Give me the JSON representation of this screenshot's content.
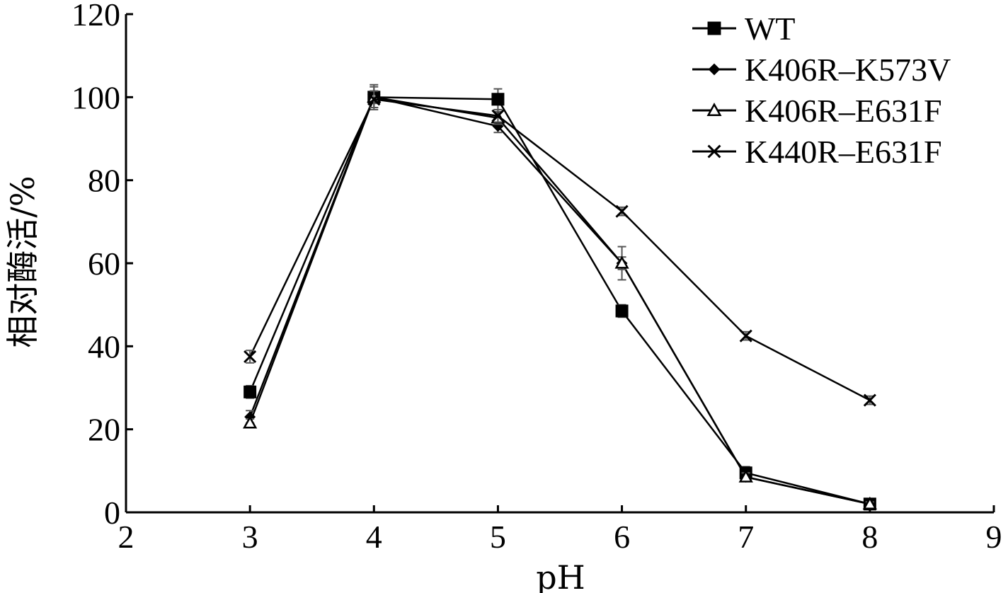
{
  "chart_data": {
    "type": "line",
    "xlabel": "pH",
    "ylabel": "相对酶活/%",
    "xlim": [
      2,
      9
    ],
    "ylim": [
      0,
      120
    ],
    "x_ticks": [
      "2",
      "3",
      "4",
      "5",
      "6",
      "7",
      "8",
      "9"
    ],
    "y_ticks": [
      "0",
      "20",
      "40",
      "60",
      "80",
      "100",
      "120"
    ],
    "grid": false,
    "legend_position": "top-right",
    "x": [
      3,
      4,
      5,
      6,
      7,
      8
    ],
    "series": [
      {
        "name": "WT",
        "marker": "square",
        "values": [
          29,
          100,
          99.5,
          48.5,
          9.5,
          2
        ],
        "errors": [
          1.5,
          2.5,
          2.5,
          1.5,
          1.5,
          1
        ]
      },
      {
        "name": "K406R–K573V",
        "marker": "diamond",
        "values": [
          23,
          100,
          93,
          60,
          8.5,
          2
        ],
        "errors": [
          1.5,
          3,
          1.5,
          4,
          1,
          0.5
        ]
      },
      {
        "name": "K406R–E631F",
        "marker": "triangle",
        "values": [
          21.5,
          100,
          95,
          60,
          8.5,
          2
        ],
        "errors": [
          1,
          1.5,
          1.5,
          1.5,
          1,
          0.5
        ]
      },
      {
        "name": "K440R–E631F",
        "marker": "x",
        "values": [
          37.5,
          99.5,
          95.5,
          72.5,
          42.5,
          27
        ],
        "errors": [
          1.5,
          2,
          1.5,
          1,
          1,
          1
        ]
      }
    ]
  }
}
